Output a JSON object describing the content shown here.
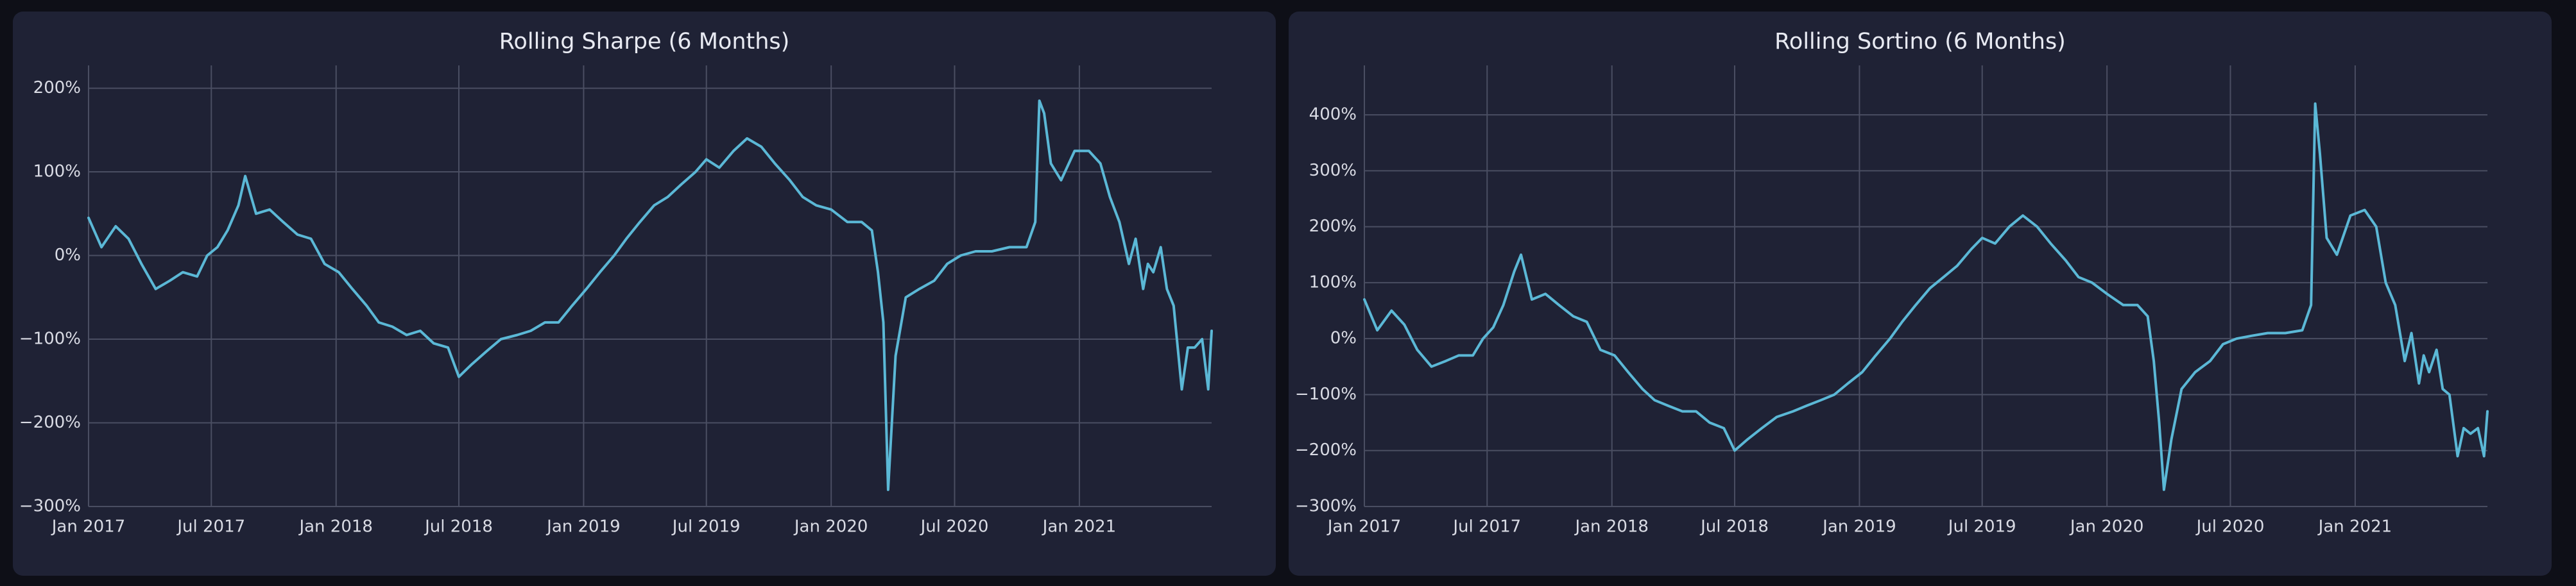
{
  "colors": {
    "page_background": "#0e0f17",
    "panel_background": "#1f2235",
    "grid": "#4a4e62",
    "text": "#d9dbe4",
    "series": "#5bb8d6"
  },
  "chart_data": [
    {
      "type": "line",
      "title": "Rolling Sharpe (6 Months)",
      "xlabel": "",
      "ylabel": "",
      "x_tick_labels": [
        "Jan 2017",
        "Jul 2017",
        "Jan 2018",
        "Jul 2018",
        "Jan 2019",
        "Jul 2019",
        "Jan 2020",
        "Jul 2020",
        "Jan 2021"
      ],
      "x_ticks": [
        "2017-01-01",
        "2017-07-01",
        "2018-01-01",
        "2018-07-01",
        "2019-01-01",
        "2019-07-01",
        "2020-01-01",
        "2020-07-01",
        "2021-01-01"
      ],
      "xlim": [
        "2017-01-01",
        "2021-07-15"
      ],
      "y_tick_labels": [
        "−300%",
        "−200%",
        "−100%",
        "0%",
        "100%",
        "200%"
      ],
      "y_ticks": [
        -300,
        -200,
        -100,
        0,
        100,
        200
      ],
      "ylim": [
        -300,
        215
      ],
      "y_unit": "%",
      "grid": true,
      "legend": "none",
      "series": [
        {
          "x": [
            "2017-01-01",
            "2017-01-20",
            "2017-02-10",
            "2017-03-01",
            "2017-03-20",
            "2017-04-10",
            "2017-05-01",
            "2017-05-20",
            "2017-06-10",
            "2017-06-25",
            "2017-07-10",
            "2017-07-25",
            "2017-08-10",
            "2017-08-20",
            "2017-09-05",
            "2017-09-25",
            "2017-10-15",
            "2017-11-05",
            "2017-11-25",
            "2017-12-15",
            "2018-01-05",
            "2018-01-25",
            "2018-02-15",
            "2018-03-05",
            "2018-03-25",
            "2018-04-15",
            "2018-05-05",
            "2018-05-25",
            "2018-06-15",
            "2018-07-01",
            "2018-07-20",
            "2018-08-10",
            "2018-09-01",
            "2018-09-25",
            "2018-10-15",
            "2018-11-05",
            "2018-11-25",
            "2018-12-15",
            "2019-01-05",
            "2019-01-25",
            "2019-02-15",
            "2019-03-05",
            "2019-03-25",
            "2019-04-15",
            "2019-05-05",
            "2019-05-25",
            "2019-06-15",
            "2019-07-01",
            "2019-07-20",
            "2019-08-10",
            "2019-08-30",
            "2019-09-20",
            "2019-10-10",
            "2019-11-01",
            "2019-11-20",
            "2019-12-10",
            "2020-01-01",
            "2020-01-25",
            "2020-02-15",
            "2020-03-01",
            "2020-03-10",
            "2020-03-18",
            "2020-03-25",
            "2020-04-05",
            "2020-04-20",
            "2020-05-10",
            "2020-06-01",
            "2020-06-20",
            "2020-07-10",
            "2020-08-01",
            "2020-08-25",
            "2020-09-20",
            "2020-10-15",
            "2020-10-28",
            "2020-11-03",
            "2020-11-10",
            "2020-11-20",
            "2020-12-05",
            "2020-12-25",
            "2021-01-15",
            "2021-02-01",
            "2021-02-15",
            "2021-03-01",
            "2021-03-15",
            "2021-03-25",
            "2021-04-05",
            "2021-04-12",
            "2021-04-20",
            "2021-05-01",
            "2021-05-10",
            "2021-05-20",
            "2021-06-01",
            "2021-06-10",
            "2021-06-20",
            "2021-07-01",
            "2021-07-10",
            "2021-07-15"
          ],
          "y": [
            45,
            10,
            35,
            20,
            -10,
            -40,
            -30,
            -20,
            -25,
            0,
            10,
            30,
            60,
            95,
            50,
            55,
            40,
            25,
            20,
            -10,
            -20,
            -40,
            -60,
            -80,
            -85,
            -95,
            -90,
            -105,
            -110,
            -145,
            -130,
            -115,
            -100,
            -95,
            -90,
            -80,
            -80,
            -60,
            -40,
            -20,
            0,
            20,
            40,
            60,
            70,
            85,
            100,
            115,
            105,
            125,
            140,
            130,
            110,
            90,
            70,
            60,
            55,
            40,
            40,
            30,
            -20,
            -80,
            -280,
            -120,
            -50,
            -40,
            -30,
            -10,
            0,
            5,
            5,
            10,
            10,
            40,
            185,
            170,
            110,
            90,
            125,
            125,
            110,
            70,
            40,
            -10,
            20,
            -40,
            -10,
            -20,
            10,
            -40,
            -60,
            -160,
            -110,
            -110,
            -100,
            -160,
            -90
          ]
        }
      ]
    },
    {
      "type": "line",
      "title": "Rolling Sortino (6 Months)",
      "xlabel": "",
      "ylabel": "",
      "x_tick_labels": [
        "Jan 2017",
        "Jul 2017",
        "Jan 2018",
        "Jul 2018",
        "Jan 2019",
        "Jul 2019",
        "Jan 2020",
        "Jul 2020",
        "Jan 2021"
      ],
      "x_ticks": [
        "2017-01-01",
        "2017-07-01",
        "2018-01-01",
        "2018-07-01",
        "2019-01-01",
        "2019-07-01",
        "2020-01-01",
        "2020-07-01",
        "2021-01-01"
      ],
      "xlim": [
        "2017-01-01",
        "2021-07-15"
      ],
      "y_tick_labels": [
        "−300%",
        "−200%",
        "−100%",
        "0%",
        "100%",
        "200%",
        "300%",
        "400%"
      ],
      "y_ticks": [
        -300,
        -200,
        -100,
        0,
        100,
        200,
        300,
        400
      ],
      "ylim": [
        -300,
        470
      ],
      "y_unit": "%",
      "grid": true,
      "legend": "none",
      "series": [
        {
          "x": [
            "2017-01-01",
            "2017-01-20",
            "2017-02-10",
            "2017-03-01",
            "2017-03-20",
            "2017-04-10",
            "2017-05-01",
            "2017-05-20",
            "2017-06-10",
            "2017-06-25",
            "2017-07-10",
            "2017-07-25",
            "2017-08-10",
            "2017-08-20",
            "2017-09-05",
            "2017-09-25",
            "2017-10-15",
            "2017-11-05",
            "2017-11-25",
            "2017-12-15",
            "2018-01-05",
            "2018-01-25",
            "2018-02-15",
            "2018-03-05",
            "2018-03-25",
            "2018-04-15",
            "2018-05-05",
            "2018-05-25",
            "2018-06-15",
            "2018-07-01",
            "2018-07-20",
            "2018-08-10",
            "2018-09-01",
            "2018-09-25",
            "2018-10-15",
            "2018-11-05",
            "2018-11-25",
            "2018-12-15",
            "2019-01-05",
            "2019-01-25",
            "2019-02-15",
            "2019-03-05",
            "2019-03-25",
            "2019-04-15",
            "2019-05-05",
            "2019-05-25",
            "2019-06-15",
            "2019-07-01",
            "2019-07-20",
            "2019-08-10",
            "2019-08-30",
            "2019-09-20",
            "2019-10-10",
            "2019-11-01",
            "2019-11-20",
            "2019-12-10",
            "2020-01-01",
            "2020-01-25",
            "2020-02-15",
            "2020-03-01",
            "2020-03-10",
            "2020-03-18",
            "2020-03-25",
            "2020-04-05",
            "2020-04-20",
            "2020-05-10",
            "2020-06-01",
            "2020-06-20",
            "2020-07-10",
            "2020-08-01",
            "2020-08-25",
            "2020-09-20",
            "2020-10-15",
            "2020-10-28",
            "2020-11-03",
            "2020-11-10",
            "2020-11-20",
            "2020-12-05",
            "2020-12-25",
            "2021-01-15",
            "2021-02-01",
            "2021-02-15",
            "2021-03-01",
            "2021-03-15",
            "2021-03-25",
            "2021-04-05",
            "2021-04-12",
            "2021-04-20",
            "2021-05-01",
            "2021-05-10",
            "2021-05-20",
            "2021-06-01",
            "2021-06-10",
            "2021-06-20",
            "2021-07-01",
            "2021-07-10",
            "2021-07-15"
          ],
          "y": [
            70,
            15,
            50,
            25,
            -20,
            -50,
            -40,
            -30,
            -30,
            0,
            20,
            60,
            120,
            150,
            70,
            80,
            60,
            40,
            30,
            -20,
            -30,
            -60,
            -90,
            -110,
            -120,
            -130,
            -130,
            -150,
            -160,
            -200,
            -180,
            -160,
            -140,
            -130,
            -120,
            -110,
            -100,
            -80,
            -60,
            -30,
            0,
            30,
            60,
            90,
            110,
            130,
            160,
            180,
            170,
            200,
            220,
            200,
            170,
            140,
            110,
            100,
            80,
            60,
            60,
            40,
            -40,
            -150,
            -270,
            -180,
            -90,
            -60,
            -40,
            -10,
            0,
            5,
            10,
            10,
            15,
            60,
            420,
            330,
            180,
            150,
            220,
            230,
            200,
            100,
            60,
            -40,
            10,
            -80,
            -30,
            -60,
            -20,
            -90,
            -100,
            -210,
            -160,
            -170,
            -160,
            -210,
            -130
          ]
        }
      ]
    }
  ]
}
